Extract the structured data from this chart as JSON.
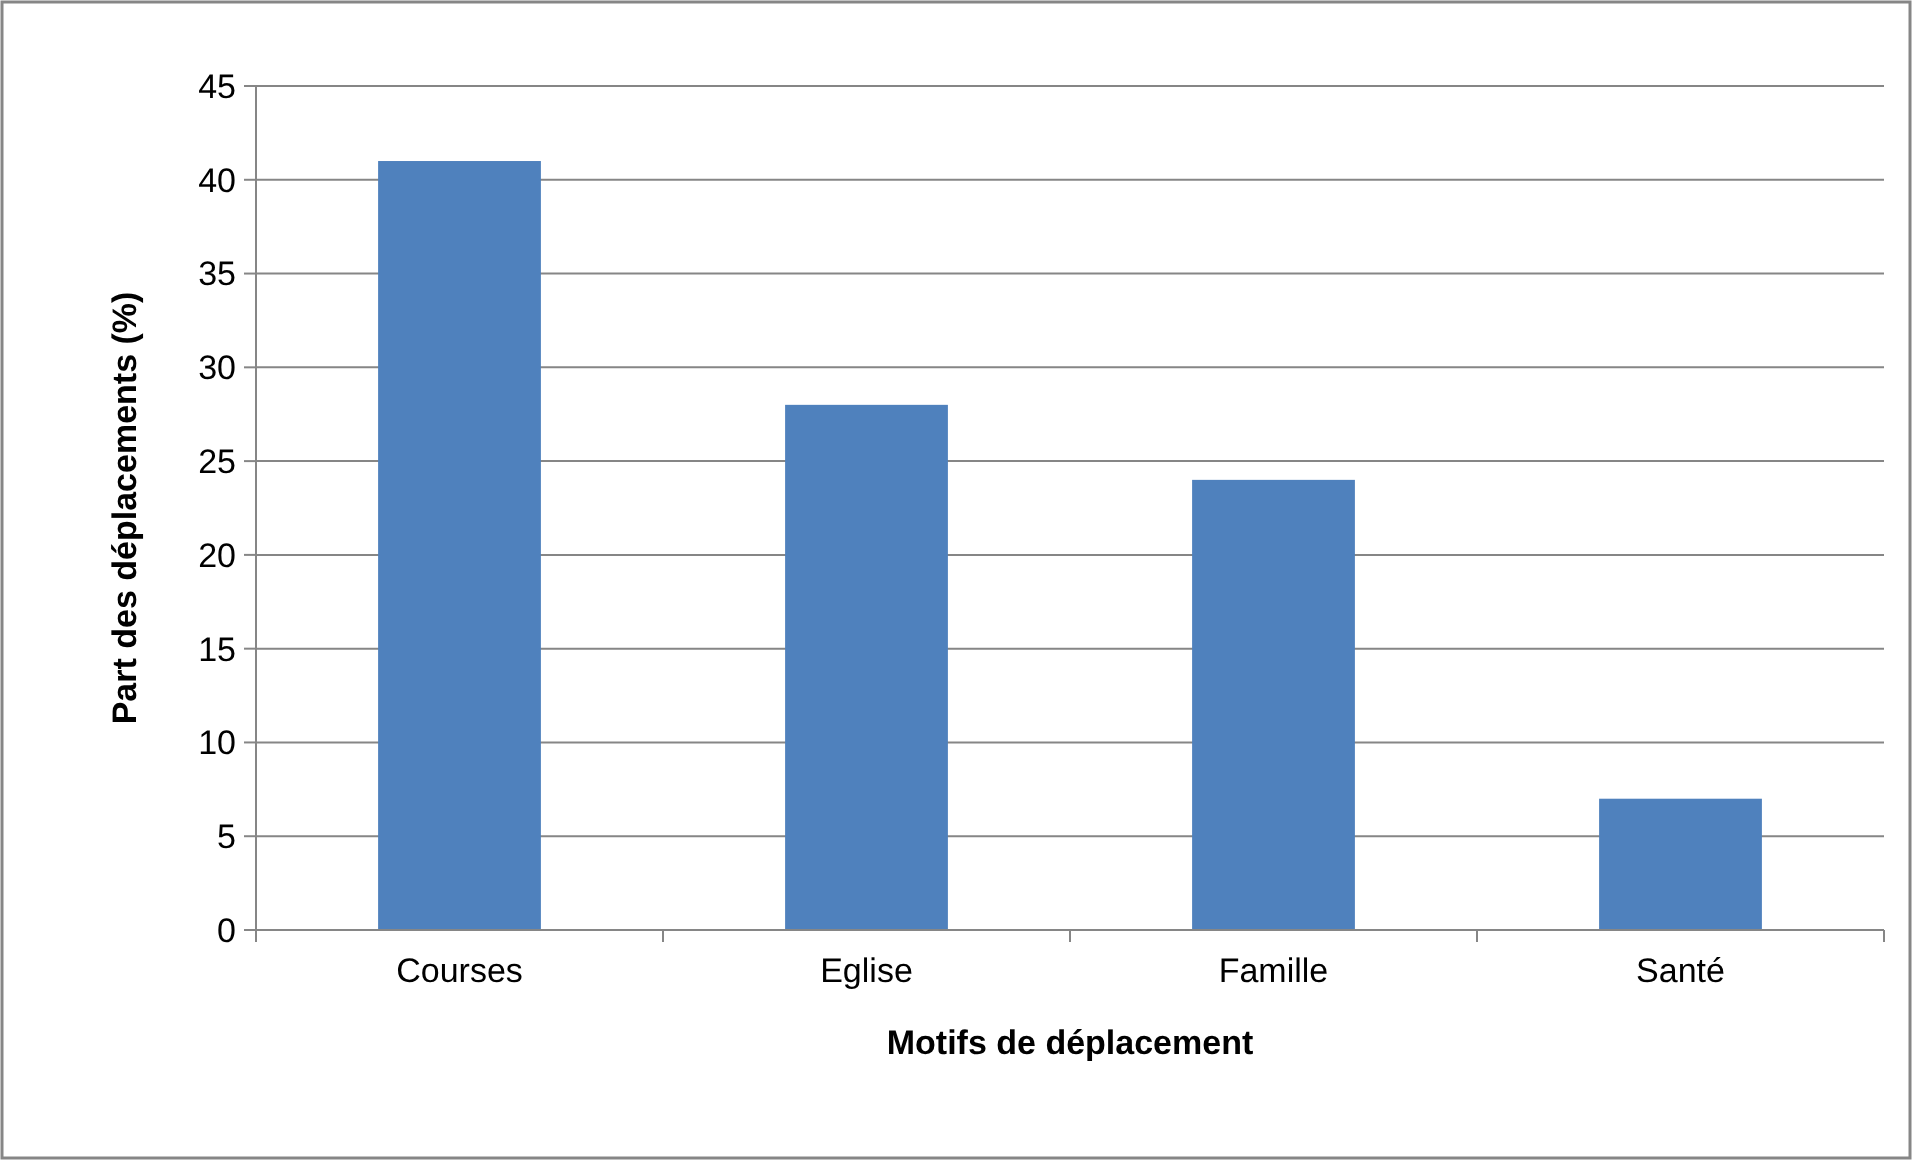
{
  "chart_data": {
    "type": "bar",
    "xlabel": "Motifs de déplacement",
    "ylabel": "Part des déplacements (%)",
    "categories": [
      "Courses",
      "Eglise",
      "Famille",
      "Santé"
    ],
    "values": [
      41,
      28,
      24,
      7
    ],
    "color": "#4f81bd",
    "ylim": [
      0,
      45
    ],
    "yticks": [
      0,
      5,
      10,
      15,
      20,
      25,
      30,
      35,
      40,
      45
    ],
    "grid": "y"
  }
}
